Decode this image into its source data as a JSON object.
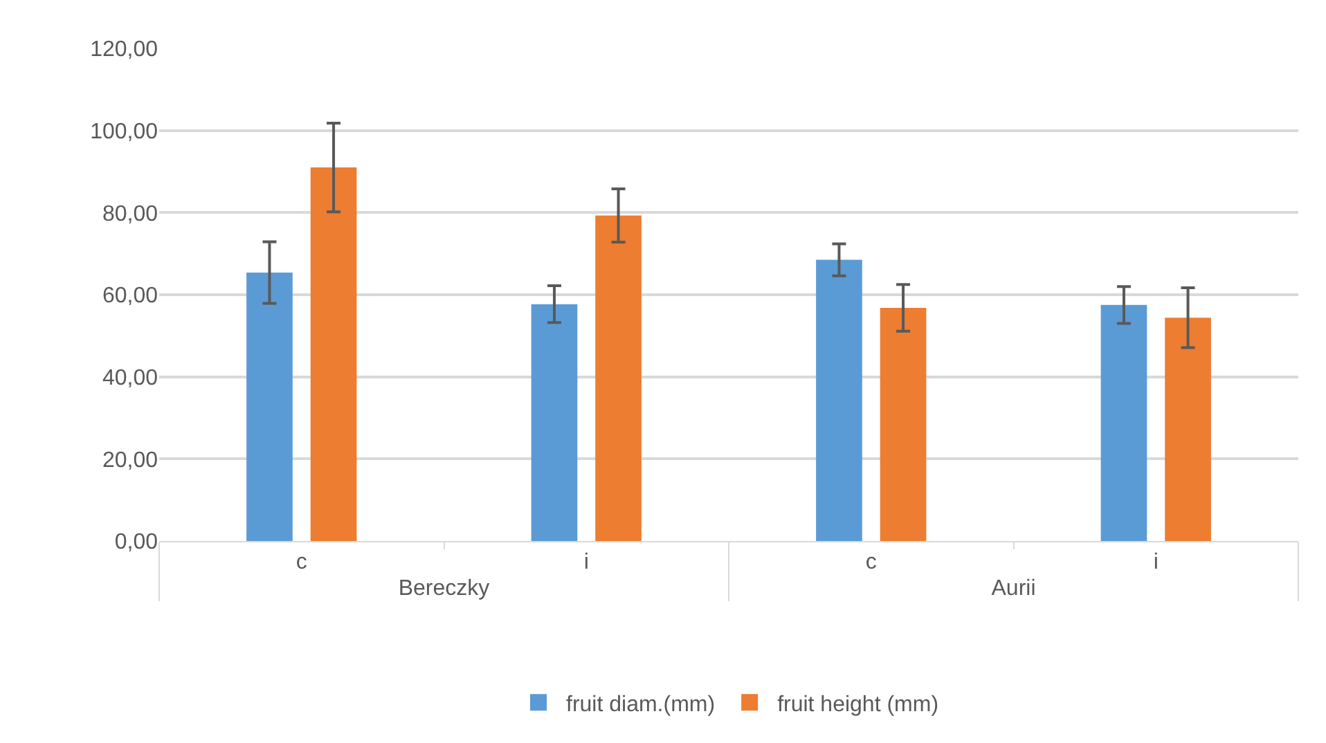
{
  "chart_data": {
    "type": "bar",
    "categories": [
      "c",
      "i",
      "c",
      "i"
    ],
    "annotations": [
      "Bereczky",
      "Aurii"
    ],
    "series": [
      {
        "name": "fruit diam.(mm)",
        "color": "#5b9bd5",
        "values": [
          65.4,
          57.7,
          68.5,
          57.5
        ],
        "errors": [
          7.5,
          4.5,
          3.9,
          4.5
        ]
      },
      {
        "name": "fruit height (mm)",
        "color": "#ed7d31",
        "values": [
          91.0,
          79.3,
          56.8,
          54.4
        ],
        "errors": [
          10.8,
          6.5,
          5.7,
          7.3
        ]
      }
    ],
    "ylim": [
      0,
      120
    ],
    "yticks": [
      {
        "value": 0,
        "label": "0,00"
      },
      {
        "value": 20,
        "label": "20,00"
      },
      {
        "value": 40,
        "label": "40,00"
      },
      {
        "value": 60,
        "label": "60,00"
      },
      {
        "value": 80,
        "label": "80,00"
      },
      {
        "value": 100,
        "label": "100,00"
      },
      {
        "value": 120,
        "label": "120,00"
      }
    ],
    "grid": "y",
    "legend": "bottom"
  }
}
